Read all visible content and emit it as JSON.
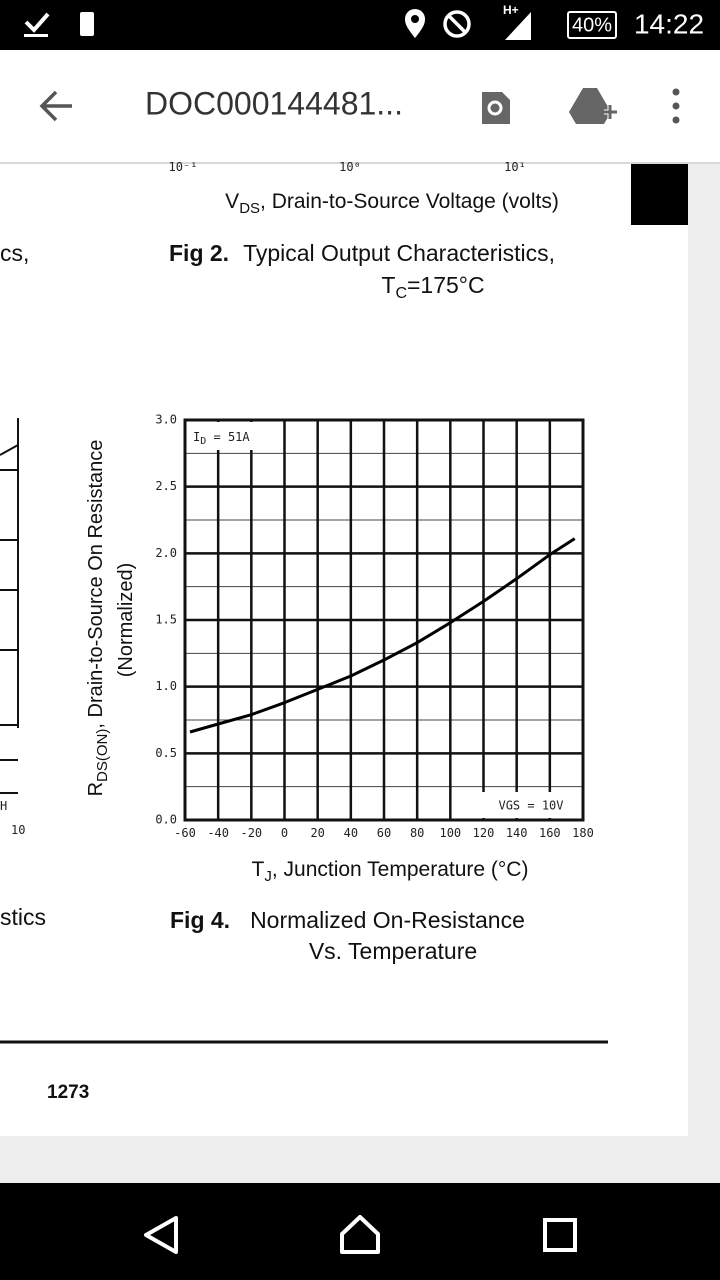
{
  "status_bar": {
    "network": "H+",
    "battery": "40%",
    "time": "14:22"
  },
  "toolbar": {
    "title": "DOC000144481..."
  },
  "document": {
    "fig2": {
      "x_tick_labels": [
        "10⁻¹",
        "10⁰",
        "10¹"
      ],
      "x_label": {
        "symbol": "V",
        "subscript": "DS",
        "text": ", Drain-to-Source Voltage (volts)"
      },
      "caption_prefix": "Fig 2.",
      "caption": "Typical Output Characteristics,",
      "caption_line2": {
        "symbol": "T",
        "subscript": "C",
        "text": "=175°C"
      }
    },
    "left_fragments": [
      "cs,",
      "H",
      "10",
      "stics"
    ],
    "page_number": "1273"
  },
  "chart_data": {
    "type": "line",
    "title_prefix": "Fig 4.",
    "title": "Normalized On-Resistance",
    "subtitle": "Vs. Temperature",
    "xlabel": {
      "symbol": "T",
      "subscript": "J",
      "text": ", Junction Temperature (°C)"
    },
    "ylabel": {
      "symbol": "R",
      "subscript": "DS(ON)",
      "text": ", Drain-to-Source On Resistance",
      "line2": "(Normalized)"
    },
    "annotations": [
      {
        "symbol": "I",
        "subscript": "D",
        "text": " = 51A"
      },
      {
        "text": "VGS = 10V"
      }
    ],
    "x": [
      -57,
      -40,
      -20,
      0,
      20,
      40,
      60,
      80,
      100,
      120,
      140,
      160,
      175
    ],
    "values": [
      0.66,
      0.72,
      0.79,
      0.88,
      0.98,
      1.08,
      1.2,
      1.33,
      1.48,
      1.64,
      1.81,
      1.99,
      2.11
    ],
    "color": "#000000",
    "xlim": [
      -60,
      180
    ],
    "xticks": [
      -60,
      -40,
      -20,
      0,
      20,
      40,
      60,
      80,
      100,
      120,
      140,
      160,
      180
    ],
    "ylim": [
      0,
      3
    ],
    "yticks": [
      {
        "value": 0,
        "label": "0.0"
      },
      0.5,
      {
        "value": 1,
        "label": "1.0"
      },
      1.5,
      {
        "value": 2,
        "label": "2.0"
      },
      2.5,
      {
        "value": 3,
        "label": "3.0"
      }
    ],
    "y_minor_ticks": [
      0.25,
      0.75,
      1.25,
      1.75,
      2.25,
      2.75
    ],
    "grid": true
  }
}
